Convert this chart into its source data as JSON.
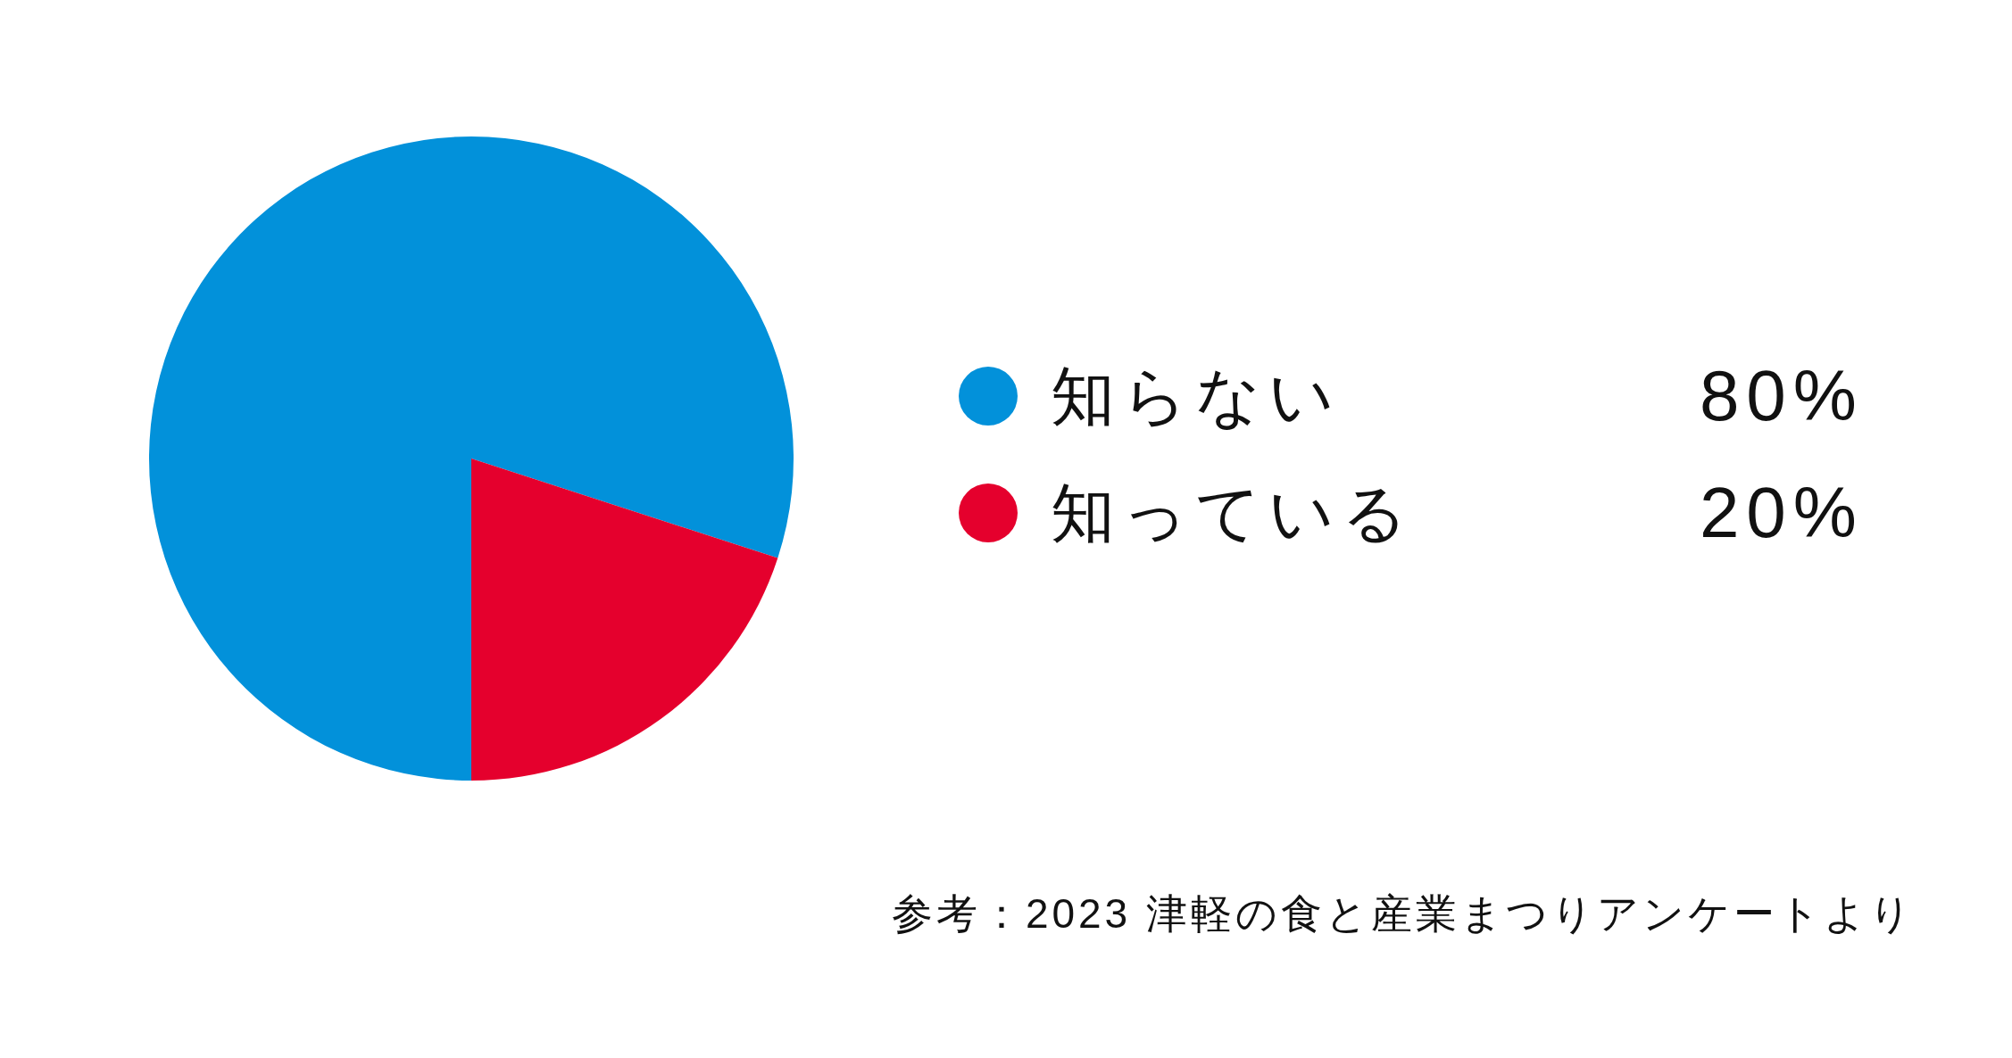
{
  "chart_data": {
    "type": "pie",
    "categories": [
      "知らない",
      "知っている"
    ],
    "values": [
      80,
      20
    ],
    "colors": [
      "#0291da",
      "#e5002d"
    ],
    "value_labels": [
      "80%",
      "20%"
    ],
    "legend": "right",
    "annotations": [
      "参考：2023 津軽の食と産業まつりアンケートより"
    ]
  }
}
